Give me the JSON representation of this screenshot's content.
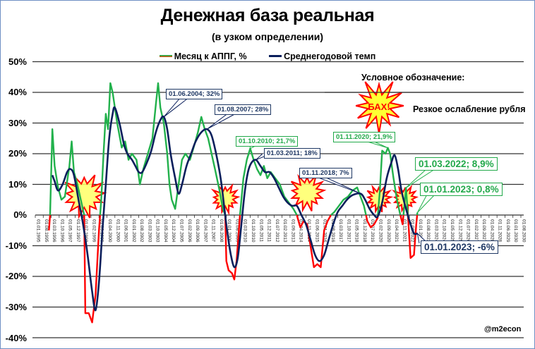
{
  "chart": {
    "title": "Денежная база реальная",
    "subtitle": "(в узком определении)",
    "legend": [
      {
        "label": "Месяц к АППГ, %",
        "color": "#22b14c"
      },
      {
        "label": "Среднегодовой темп",
        "color": "#0b1f5c"
      }
    ],
    "legend_note_title": "Условное обозначение:",
    "legend_note_burst_text": "БАХ!",
    "legend_note_text": "Резкое ослабление рубля",
    "watermark": "@m2econ",
    "y_ticks": [
      "50%",
      "40%",
      "30%",
      "20%",
      "10%",
      "0%",
      "-10%",
      "-20%",
      "-30%",
      "-40%"
    ],
    "annotations": [
      {
        "text": "01.06.2004; 32%",
        "style": "blue"
      },
      {
        "text": "01.08.2007; 28%",
        "style": "blue"
      },
      {
        "text": "01.10.2010; 21,7%",
        "style": "green"
      },
      {
        "text": "01.03.2011; 18%",
        "style": "blue"
      },
      {
        "text": "01.11.2018; 7%",
        "style": "blue"
      },
      {
        "text": "01.11.2020; 21,9%",
        "style": "green"
      },
      {
        "text": "01.03.2022; 8,9%",
        "style": "green"
      },
      {
        "text": "01.01.2023; 0,8%",
        "style": "green"
      },
      {
        "text": "01.01.2023; -6%",
        "style": "blue"
      }
    ]
  },
  "chart_data": {
    "type": "line",
    "title": "Денежная база реальная",
    "subtitle": "(в узком определении)",
    "xlabel": "",
    "ylabel": "",
    "ylim": [
      -40,
      50
    ],
    "y_tick_step": 10,
    "grid": true,
    "legend_position": "top",
    "x_tick_labels": [
      "01.01.1995",
      "01.08.1995",
      "01.03.1996",
      "01.10.1996",
      "01.05.1997",
      "01.12.1997",
      "01.07.1998",
      "01.02.1999",
      "01.09.1999",
      "01.04.2000",
      "01.11.2000",
      "01.06.2001",
      "01.01.2002",
      "01.08.2002",
      "01.03.2003",
      "01.10.2003",
      "01.05.2004",
      "01.12.2004",
      "01.07.2005",
      "01.02.2006",
      "01.09.2006",
      "01.04.2007",
      "01.11.2007",
      "01.06.2008",
      "01.01.2009",
      "01.08.2009",
      "01.03.2010",
      "01.10.2010",
      "01.05.2011",
      "01.12.2011",
      "01.07.2012",
      "01.02.2013",
      "01.09.2013",
      "01.04.2014",
      "01.11.2014",
      "01.06.2015",
      "01.01.2016",
      "01.08.2016",
      "01.03.2017",
      "01.10.2017",
      "01.05.2018",
      "01.12.2018",
      "01.07.2019",
      "01.02.2020",
      "01.09.2020",
      "01.04.2021",
      "01.11.2021",
      "01.06.2022",
      "01.01.2023",
      "01.08.2023",
      "01.03.2024",
      "01.10.2024",
      "01.05.2025",
      "01.12.2025",
      "01.07.2026",
      "01.02.2027",
      "01.09.2027",
      "01.04.2028",
      "01.11.2028",
      "01.06.2029",
      "01.01.2030",
      "01.08.2030"
    ],
    "series": [
      {
        "name": "Месяц к АППГ, %",
        "color": "#22b14c",
        "negative_color": "#ff0000",
        "points": [
          [
            "1996-01",
            -5
          ],
          [
            "1996-02",
            0
          ],
          [
            "1996-04",
            28
          ],
          [
            "1996-06",
            16
          ],
          [
            "1996-09",
            9
          ],
          [
            "1996-12",
            5
          ],
          [
            "1997-03",
            6
          ],
          [
            "1997-07",
            16
          ],
          [
            "1997-09",
            24
          ],
          [
            "1997-11",
            14
          ],
          [
            "1998-02",
            10
          ],
          [
            "1998-05",
            5
          ],
          [
            "1998-08",
            0
          ],
          [
            "1998-09",
            -32
          ],
          [
            "1998-12",
            -32
          ],
          [
            "1999-03",
            -35
          ],
          [
            "1999-06",
            -26
          ],
          [
            "1999-09",
            -5
          ],
          [
            "1999-11",
            5
          ],
          [
            "2000-01",
            20
          ],
          [
            "2000-03",
            33
          ],
          [
            "2000-05",
            28
          ],
          [
            "2000-07",
            43
          ],
          [
            "2000-09",
            40
          ],
          [
            "2001-01",
            30
          ],
          [
            "2001-05",
            22
          ],
          [
            "2001-08",
            24
          ],
          [
            "2001-11",
            18
          ],
          [
            "2002-02",
            20
          ],
          [
            "2002-06",
            18
          ],
          [
            "2002-09",
            10
          ],
          [
            "2002-12",
            15
          ],
          [
            "2003-04",
            20
          ],
          [
            "2003-08",
            25
          ],
          [
            "2003-11",
            36
          ],
          [
            "2004-01",
            43
          ],
          [
            "2004-03",
            35
          ],
          [
            "2004-06",
            30
          ],
          [
            "2004-09",
            20
          ],
          [
            "2004-11",
            10
          ],
          [
            "2005-01",
            5
          ],
          [
            "2005-04",
            2
          ],
          [
            "2005-07",
            10
          ],
          [
            "2005-10",
            18
          ],
          [
            "2006-01",
            20
          ],
          [
            "2006-05",
            18
          ],
          [
            "2006-09",
            23
          ],
          [
            "2006-12",
            27
          ],
          [
            "2007-03",
            32
          ],
          [
            "2007-06",
            28
          ],
          [
            "2007-09",
            25
          ],
          [
            "2007-12",
            20
          ],
          [
            "2008-03",
            15
          ],
          [
            "2008-07",
            8
          ],
          [
            "2008-10",
            2
          ],
          [
            "2008-12",
            0
          ],
          [
            "2009-01",
            -15
          ],
          [
            "2009-03",
            -18
          ],
          [
            "2009-06",
            -19
          ],
          [
            "2009-08",
            -21
          ],
          [
            "2009-10",
            -15
          ],
          [
            "2010-01",
            0
          ],
          [
            "2010-04",
            12
          ],
          [
            "2010-07",
            18
          ],
          [
            "2010-10",
            21.7
          ],
          [
            "2011-01",
            18
          ],
          [
            "2011-04",
            15
          ],
          [
            "2011-07",
            13
          ],
          [
            "2011-10",
            16
          ],
          [
            "2012-01",
            12
          ],
          [
            "2012-04",
            14
          ],
          [
            "2012-08",
            12
          ],
          [
            "2012-12",
            10
          ],
          [
            "2013-04",
            6
          ],
          [
            "2013-08",
            4
          ],
          [
            "2013-12",
            2
          ],
          [
            "2014-03",
            0
          ],
          [
            "2014-06",
            -4
          ],
          [
            "2014-09",
            -2
          ],
          [
            "2014-12",
            -3
          ],
          [
            "2015-03",
            -10
          ],
          [
            "2015-06",
            -17
          ],
          [
            "2015-09",
            -16
          ],
          [
            "2015-12",
            -17
          ],
          [
            "2016-03",
            -5
          ],
          [
            "2016-06",
            -2
          ],
          [
            "2016-09",
            0
          ],
          [
            "2016-12",
            1
          ],
          [
            "2017-04",
            3
          ],
          [
            "2017-08",
            5
          ],
          [
            "2017-12",
            6
          ],
          [
            "2018-04",
            8
          ],
          [
            "2018-08",
            9
          ],
          [
            "2018-11",
            6
          ],
          [
            "2019-02",
            3
          ],
          [
            "2019-05",
            -2
          ],
          [
            "2019-08",
            -4
          ],
          [
            "2019-11",
            -3
          ],
          [
            "2020-02",
            -1
          ],
          [
            "2020-04",
            8
          ],
          [
            "2020-06",
            21
          ],
          [
            "2020-09",
            20
          ],
          [
            "2020-11",
            21.9
          ],
          [
            "2021-01",
            20
          ],
          [
            "2021-04",
            12
          ],
          [
            "2021-07",
            5
          ],
          [
            "2021-10",
            0
          ],
          [
            "2021-12",
            -3
          ],
          [
            "2022-03",
            8.9
          ],
          [
            "2022-05",
            -2
          ],
          [
            "2022-07",
            -14
          ],
          [
            "2022-10",
            -13
          ],
          [
            "2022-12",
            -3
          ],
          [
            "2023-01",
            0.8
          ]
        ]
      },
      {
        "name": "Среднегодовой темп",
        "color": "#0b1f5c",
        "points": [
          [
            "1996-04",
            13
          ],
          [
            "1996-06",
            11
          ],
          [
            "1996-09",
            8
          ],
          [
            "1997-01",
            10
          ],
          [
            "1997-05",
            14
          ],
          [
            "1997-08",
            15
          ],
          [
            "1997-11",
            13
          ],
          [
            "1998-03",
            5
          ],
          [
            "1998-07",
            -3
          ],
          [
            "1998-11",
            -13
          ],
          [
            "1999-03",
            -25
          ],
          [
            "1999-06",
            -31
          ],
          [
            "1999-09",
            -22
          ],
          [
            "1999-12",
            -5
          ],
          [
            "2000-03",
            10
          ],
          [
            "2000-06",
            25
          ],
          [
            "2000-09",
            33
          ],
          [
            "2000-11",
            35
          ],
          [
            "2001-03",
            30
          ],
          [
            "2001-07",
            23
          ],
          [
            "2001-10",
            20
          ],
          [
            "2002-02",
            18
          ],
          [
            "2002-05",
            16
          ],
          [
            "2002-08",
            14
          ],
          [
            "2002-11",
            14
          ],
          [
            "2003-03",
            17
          ],
          [
            "2003-07",
            21
          ],
          [
            "2003-11",
            27
          ],
          [
            "2004-03",
            31
          ],
          [
            "2004-06",
            32
          ],
          [
            "2004-09",
            28
          ],
          [
            "2004-12",
            20
          ],
          [
            "2005-04",
            12
          ],
          [
            "2005-07",
            7
          ],
          [
            "2005-10",
            10
          ],
          [
            "2006-02",
            16
          ],
          [
            "2006-06",
            20
          ],
          [
            "2006-10",
            24
          ],
          [
            "2007-03",
            27
          ],
          [
            "2007-08",
            28
          ],
          [
            "2007-12",
            26
          ],
          [
            "2008-04",
            20
          ],
          [
            "2008-08",
            12
          ],
          [
            "2008-11",
            3
          ],
          [
            "2009-02",
            -6
          ],
          [
            "2009-05",
            -13
          ],
          [
            "2009-08",
            -17
          ],
          [
            "2009-11",
            -14
          ],
          [
            "2010-02",
            -4
          ],
          [
            "2010-05",
            7
          ],
          [
            "2010-08",
            14
          ],
          [
            "2010-11",
            17
          ],
          [
            "2011-03",
            18
          ],
          [
            "2011-07",
            16
          ],
          [
            "2011-11",
            14
          ],
          [
            "2012-03",
            14
          ],
          [
            "2012-07",
            12
          ],
          [
            "2012-11",
            9
          ],
          [
            "2013-03",
            6
          ],
          [
            "2013-07",
            4
          ],
          [
            "2013-11",
            3
          ],
          [
            "2014-03",
            3
          ],
          [
            "2014-07",
            0
          ],
          [
            "2014-11",
            -3
          ],
          [
            "2015-03",
            -8
          ],
          [
            "2015-07",
            -13
          ],
          [
            "2015-11",
            -15
          ],
          [
            "2016-03",
            -13
          ],
          [
            "2016-07",
            -8
          ],
          [
            "2016-11",
            -3
          ],
          [
            "2017-03",
            1
          ],
          [
            "2017-07",
            3
          ],
          [
            "2017-11",
            5
          ],
          [
            "2018-04",
            6.5
          ],
          [
            "2018-11",
            7
          ],
          [
            "2019-03",
            5
          ],
          [
            "2019-07",
            2
          ],
          [
            "2019-11",
            0
          ],
          [
            "2020-02",
            -0.5
          ],
          [
            "2020-06",
            4
          ],
          [
            "2020-10",
            12
          ],
          [
            "2021-02",
            17
          ],
          [
            "2021-05",
            19.5
          ],
          [
            "2021-08",
            15
          ],
          [
            "2021-11",
            8
          ],
          [
            "2022-03",
            2
          ],
          [
            "2022-07",
            -3
          ],
          [
            "2022-10",
            -6
          ],
          [
            "2023-01",
            -6
          ]
        ]
      }
    ],
    "callouts": [
      {
        "label": "01.06.2004; 32%",
        "series": "Среднегодовой темп",
        "x": "2004-06",
        "y": 32
      },
      {
        "label": "01.08.2007; 28%",
        "series": "Среднегодовой темп",
        "x": "2007-08",
        "y": 28
      },
      {
        "label": "01.10.2010; 21,7%",
        "series": "Месяц к АППГ, %",
        "x": "2010-10",
        "y": 21.7
      },
      {
        "label": "01.03.2011; 18%",
        "series": "Среднегодовой темп",
        "x": "2011-03",
        "y": 18
      },
      {
        "label": "01.11.2018; 7%",
        "series": "Среднегодовой темп",
        "x": "2018-11",
        "y": 7
      },
      {
        "label": "01.11.2020; 21,9%",
        "series": "Месяц к АППГ, %",
        "x": "2020-11",
        "y": 21.9
      },
      {
        "label": "01.03.2022; 8,9%",
        "series": "Месяц к АППГ, %",
        "x": "2022-03",
        "y": 8.9
      },
      {
        "label": "01.01.2023; 0,8%",
        "series": "Месяц к АППГ, %",
        "x": "2023-01",
        "y": 0.8
      },
      {
        "label": "01.01.2023; -6%",
        "series": "Среднегодовой темп",
        "x": "2023-01",
        "y": -6
      }
    ],
    "event_markers": {
      "label": "Резкое ослабление рубля",
      "symbol_text": "БАХ!",
      "positions": [
        [
          "1998-08",
          5
        ],
        [
          "2008-12",
          4
        ],
        [
          "2014-12",
          6
        ],
        [
          "2020-03",
          4
        ],
        [
          "2022-02",
          4
        ]
      ]
    }
  }
}
